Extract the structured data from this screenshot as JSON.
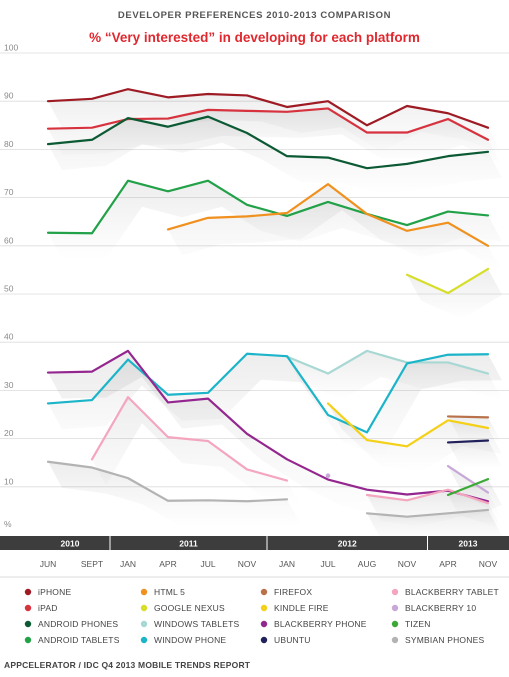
{
  "header": {
    "supertitle": "DEVELOPER PREFERENCES 2010-2013 COMPARISON",
    "title": "% “Very interested” in developing for each platform"
  },
  "footer": {
    "source": "APPCELERATOR / IDC Q4 2013 MOBILE TRENDS REPORT"
  },
  "chart_data": {
    "type": "line",
    "title": "% “Very interested” in developing for each platform",
    "ylabel": "%",
    "ylim": [
      0,
      100
    ],
    "y_ticks": [
      100,
      90,
      80,
      70,
      60,
      50,
      40,
      30,
      20,
      10
    ],
    "x_categories": [
      "JUN",
      "SEPT",
      "JAN",
      "APR",
      "JUL",
      "NOV",
      "JAN",
      "JUL",
      "AUG",
      "NOV",
      "APR",
      "NOV"
    ],
    "year_bands": [
      {
        "label": "2010",
        "from": 0,
        "to": 1
      },
      {
        "label": "2011",
        "from": 2,
        "to": 5
      },
      {
        "label": "2012",
        "from": 6,
        "to": 9
      },
      {
        "label": "2013",
        "from": 10,
        "to": 11
      }
    ],
    "grid": true,
    "legend_position": "bottom",
    "series": [
      {
        "name": "iPHONE",
        "color": "#9e1b24",
        "values": [
          90,
          90.5,
          92.5,
          90.8,
          91.5,
          91.2,
          88.8,
          90,
          85,
          89,
          87.5,
          84.5
        ]
      },
      {
        "name": "iPAD",
        "color": "#d6333f",
        "values": [
          84.3,
          84.5,
          86.3,
          86.4,
          88.2,
          88.0,
          87.8,
          88.5,
          83.5,
          83.5,
          86.3,
          82
        ]
      },
      {
        "name": "ANDROID PHONES",
        "color": "#0c5a34",
        "values": [
          81.1,
          82,
          86.5,
          84.7,
          86.8,
          83.4,
          78.6,
          78.3,
          76.1,
          77,
          78.6,
          79.5
        ]
      },
      {
        "name": "ANDROID TABLETS",
        "color": "#22a148",
        "values": [
          62.7,
          62.6,
          73.5,
          71.3,
          73.5,
          68.5,
          66.2,
          69.1,
          66.6,
          64.3,
          67.1,
          66.3
        ]
      },
      {
        "name": "HTML 5",
        "color": "#f0901e",
        "values": [
          null,
          null,
          null,
          63.4,
          65.8,
          66.1,
          66.8,
          72.8,
          66.6,
          63.1,
          64.8,
          60
        ]
      },
      {
        "name": "GOOGLE NEXUS",
        "color": "#d6de2a",
        "values": [
          null,
          null,
          null,
          null,
          null,
          null,
          null,
          null,
          null,
          54,
          50.2,
          55.2
        ]
      },
      {
        "name": "WINDOWS TABLETS",
        "color": "#a8d8d3",
        "values": [
          null,
          null,
          null,
          null,
          null,
          null,
          37,
          33.5,
          38.2,
          35.8,
          35.8,
          33.5
        ]
      },
      {
        "name": "WINDOW PHONE",
        "color": "#1bb4c9",
        "values": [
          27.3,
          28,
          36.4,
          29.1,
          29.5,
          37.6,
          37.1,
          24.9,
          21.3,
          35.6,
          37.4,
          37.5
        ]
      },
      {
        "name": "FIREFOX",
        "color": "#b8714a",
        "values": [
          null,
          null,
          null,
          null,
          null,
          null,
          null,
          null,
          null,
          null,
          24.6,
          24.4
        ]
      },
      {
        "name": "KINDLE FIRE",
        "color": "#f4d018",
        "values": [
          null,
          null,
          null,
          null,
          null,
          null,
          null,
          27.3,
          19.7,
          18.4,
          23.8,
          22.2
        ]
      },
      {
        "name": "BLACKBERRY PHONE",
        "color": "#94278f",
        "values": [
          33.7,
          33.9,
          38.2,
          27.5,
          28.3,
          21,
          15.7,
          11.5,
          9.4,
          8.4,
          9.2,
          7
        ]
      },
      {
        "name": "UBUNTU",
        "color": "#20205a",
        "values": [
          null,
          null,
          null,
          null,
          null,
          null,
          null,
          null,
          null,
          null,
          19.2,
          19.6
        ]
      },
      {
        "name": "BLACKBERRY TABLET",
        "color": "#f4a6bf",
        "values": [
          null,
          15.7,
          28.6,
          20.3,
          19.5,
          13.6,
          11.3,
          null,
          8.3,
          7.2,
          9.4,
          6.6
        ]
      },
      {
        "name": "BLACKBERRY 10",
        "color": "#c7a8d8",
        "values": [
          null,
          null,
          null,
          null,
          null,
          null,
          null,
          12.3,
          null,
          null,
          14.3,
          8.8
        ]
      },
      {
        "name": "TIZEN",
        "color": "#3aaa35",
        "values": [
          null,
          null,
          null,
          null,
          null,
          null,
          null,
          null,
          null,
          null,
          8.3,
          11.6
        ]
      },
      {
        "name": "SYMBIAN PHONES",
        "color": "#b3b3b3",
        "values": [
          15.2,
          14,
          11.8,
          7.1,
          7.2,
          7,
          7.4,
          null,
          4.5,
          3.8,
          4.5,
          5.2
        ]
      }
    ]
  }
}
